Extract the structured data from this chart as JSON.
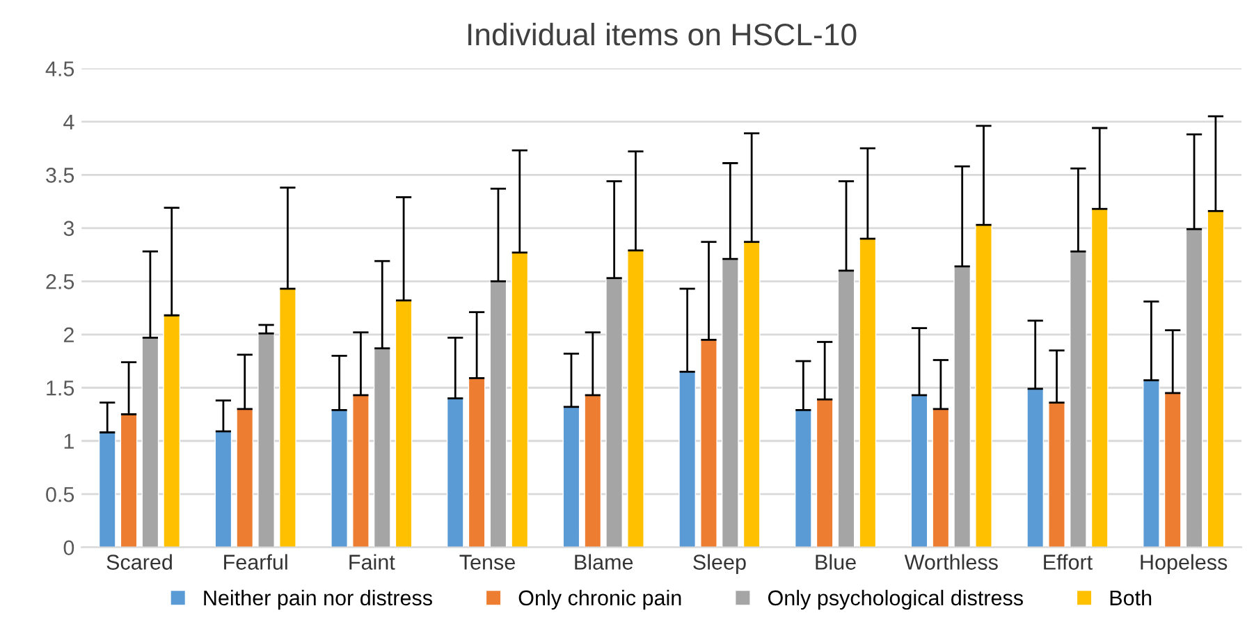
{
  "chart_data": {
    "type": "bar",
    "title": "Individual items on HSCL-10",
    "categories": [
      "Scared",
      "Fearful",
      "Faint",
      "Tense",
      "Blame",
      "Sleep",
      "Blue",
      "Worthless",
      "Effort",
      "Hopeless"
    ],
    "series": [
      {
        "name": "Neither pain nor distress",
        "color": "#5b9bd5",
        "values": [
          1.08,
          1.09,
          1.29,
          1.4,
          1.32,
          1.65,
          1.29,
          1.43,
          1.49,
          1.57
        ],
        "errors": [
          [
            1.08,
            1.36
          ],
          [
            1.09,
            1.38
          ],
          [
            1.29,
            1.8
          ],
          [
            1.4,
            1.97
          ],
          [
            1.32,
            1.82
          ],
          [
            1.65,
            2.43
          ],
          [
            1.29,
            1.75
          ],
          [
            1.43,
            2.06
          ],
          [
            1.49,
            2.13
          ],
          [
            1.57,
            2.31
          ]
        ]
      },
      {
        "name": "Only chronic pain",
        "color": "#ed7d31",
        "values": [
          1.25,
          1.3,
          1.43,
          1.59,
          1.43,
          1.95,
          1.39,
          1.3,
          1.36,
          1.45
        ],
        "errors": [
          [
            1.25,
            1.74
          ],
          [
            1.3,
            1.81
          ],
          [
            1.43,
            2.02
          ],
          [
            1.59,
            2.21
          ],
          [
            1.43,
            2.02
          ],
          [
            1.95,
            2.87
          ],
          [
            1.39,
            1.93
          ],
          [
            1.3,
            1.76
          ],
          [
            1.36,
            1.85
          ],
          [
            1.45,
            2.04
          ]
        ]
      },
      {
        "name": "Only psychological distress",
        "color": "#a5a5a5",
        "values": [
          1.97,
          2.01,
          1.87,
          2.5,
          2.53,
          2.71,
          2.6,
          2.64,
          2.78,
          2.99
        ],
        "errors": [
          [
            1.97,
            2.78
          ],
          [
            2.01,
            2.09
          ],
          [
            1.87,
            2.69
          ],
          [
            2.5,
            3.37
          ],
          [
            2.53,
            3.44
          ],
          [
            2.71,
            3.61
          ],
          [
            2.6,
            3.44
          ],
          [
            2.64,
            3.58
          ],
          [
            2.78,
            3.56
          ],
          [
            2.99,
            3.88
          ]
        ]
      },
      {
        "name": "Both",
        "color": "#ffc000",
        "values": [
          2.18,
          2.43,
          2.32,
          2.77,
          2.79,
          2.87,
          2.9,
          3.03,
          3.18,
          3.16
        ],
        "errors": [
          [
            2.18,
            3.19
          ],
          [
            2.43,
            3.38
          ],
          [
            2.32,
            3.29
          ],
          [
            2.77,
            3.73
          ],
          [
            2.79,
            3.72
          ],
          [
            2.87,
            3.89
          ],
          [
            2.9,
            3.75
          ],
          [
            3.03,
            3.96
          ],
          [
            3.18,
            3.94
          ],
          [
            3.16,
            4.05
          ]
        ]
      }
    ],
    "ylim": [
      0,
      4.5
    ],
    "yticks": [
      0,
      0.5,
      1,
      1.5,
      2,
      2.5,
      3,
      3.5,
      4,
      4.5
    ],
    "grid": "y",
    "legend": "bottom"
  }
}
